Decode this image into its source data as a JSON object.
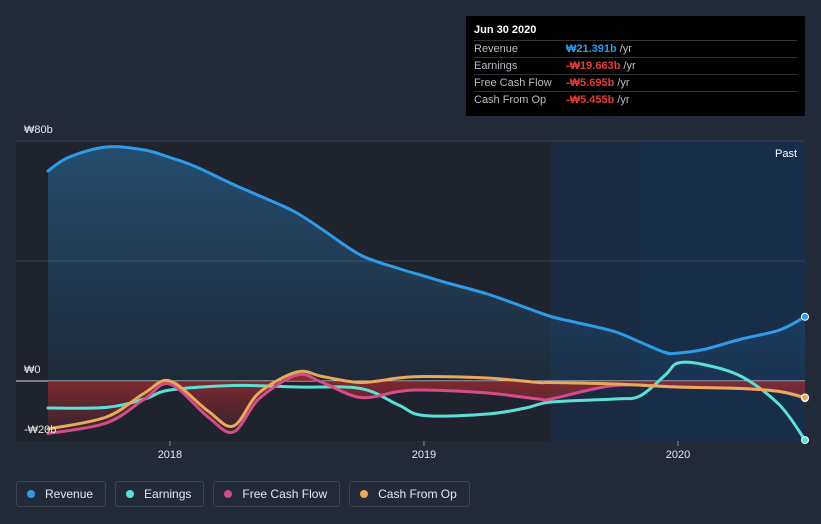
{
  "tooltip": {
    "date": "Jun 30 2020",
    "rows": [
      {
        "label": "Revenue",
        "value": "₩21.391b",
        "unit": "/yr",
        "color": "#2f9be8"
      },
      {
        "label": "Earnings",
        "value": "-₩19.663b",
        "unit": "/yr",
        "color": "#e23c3c"
      },
      {
        "label": "Free Cash Flow",
        "value": "-₩5.695b",
        "unit": "/yr",
        "color": "#e23c3c"
      },
      {
        "label": "Cash From Op",
        "value": "-₩5.455b",
        "unit": "/yr",
        "color": "#e23c3c"
      }
    ]
  },
  "legend": [
    {
      "label": "Revenue",
      "color": "#2f9be8"
    },
    {
      "label": "Earnings",
      "color": "#5ce0d6"
    },
    {
      "label": "Free Cash Flow",
      "color": "#d44c89"
    },
    {
      "label": "Cash From Op",
      "color": "#e8a95a"
    }
  ],
  "chart_data": {
    "type": "line",
    "y_tick_labels": [
      "₩80b",
      "₩0",
      "-₩20b"
    ],
    "y_ticks": [
      80,
      0,
      -20
    ],
    "ylim": [
      -20,
      80
    ],
    "xlim": [
      2017.52,
      2020.5
    ],
    "x_tick_labels": [
      "2018",
      "2019",
      "2020"
    ],
    "x_ticks": [
      2018,
      2019,
      2020
    ],
    "past_label": "Past",
    "past_start": 2019.5,
    "forecast_shade_start": 2019.85,
    "grid": true,
    "series": [
      {
        "name": "Revenue",
        "color": "#2f9be8",
        "area": true,
        "x": [
          2017.52,
          2017.6,
          2017.75,
          2017.9,
          2018.0,
          2018.1,
          2018.25,
          2018.4,
          2018.5,
          2018.6,
          2018.75,
          2018.9,
          2019.0,
          2019.1,
          2019.25,
          2019.4,
          2019.5,
          2019.6,
          2019.75,
          2019.85,
          2019.95,
          2020.0,
          2020.1,
          2020.25,
          2020.4,
          2020.5
        ],
        "y": [
          70,
          74.5,
          78,
          77,
          74.5,
          71.5,
          65.5,
          60,
          56,
          50.5,
          42,
          37.5,
          35,
          32.5,
          29,
          24.5,
          21.5,
          19.5,
          16.5,
          13,
          9.5,
          9.3,
          10.5,
          14,
          17,
          21.4
        ]
      },
      {
        "name": "Earnings",
        "color": "#5ce0d6",
        "x": [
          2017.52,
          2017.75,
          2017.9,
          2018.0,
          2018.25,
          2018.5,
          2018.75,
          2018.9,
          2019.0,
          2019.25,
          2019.4,
          2019.5,
          2019.75,
          2019.85,
          2019.95,
          2020.0,
          2020.1,
          2020.25,
          2020.4,
          2020.5
        ],
        "y": [
          -9,
          -8.8,
          -6,
          -3,
          -1.5,
          -2,
          -2.5,
          -8,
          -11.5,
          -11,
          -9,
          -7,
          -6,
          -5,
          2,
          6,
          5.5,
          1.5,
          -8,
          -19.7
        ]
      },
      {
        "name": "Free Cash Flow",
        "color": "#d44c89",
        "area": true,
        "x": [
          2017.52,
          2017.75,
          2017.9,
          2018.0,
          2018.15,
          2018.25,
          2018.35,
          2018.5,
          2018.6,
          2018.75,
          2018.9,
          2019.0,
          2019.25,
          2019.45,
          2019.5,
          2019.75,
          2020.0,
          2020.25,
          2020.4,
          2020.5
        ],
        "y": [
          -17.5,
          -14,
          -6,
          -1,
          -12,
          -17,
          -6,
          2,
          -0.5,
          -5.5,
          -3.5,
          -3,
          -4,
          -6,
          -6,
          -1.5,
          -2,
          -2.5,
          -3.5,
          -5.7
        ]
      },
      {
        "name": "Cash From Op",
        "color": "#e8a95a",
        "x": [
          2017.52,
          2017.75,
          2017.9,
          2018.0,
          2018.15,
          2018.25,
          2018.35,
          2018.5,
          2018.6,
          2018.75,
          2018.9,
          2019.0,
          2019.25,
          2019.45,
          2019.5,
          2019.75,
          2020.0,
          2020.25,
          2020.4,
          2020.5
        ],
        "y": [
          -16,
          -12,
          -4,
          0,
          -10,
          -15,
          -4,
          3,
          1.5,
          -0.5,
          1,
          1.5,
          1,
          -0.5,
          -0.5,
          -1,
          -2,
          -2.5,
          -3.5,
          -5.5
        ]
      }
    ]
  }
}
